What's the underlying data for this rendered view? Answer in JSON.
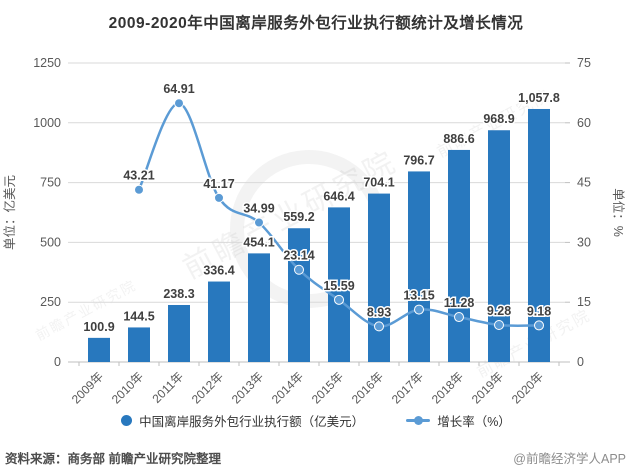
{
  "title": "2009-2020年中国离岸服务外包行业执行额统计及增长情况",
  "watermark": "前瞻产业研究院",
  "legend": {
    "bar_label": "中国离岸服务外包行业执行额（亿美元）",
    "line_label": "增长率（%）"
  },
  "footer": {
    "source": "资料来源：商务部 前瞻产业研究院整理",
    "brand": "@前瞻经济学人APP"
  },
  "colors": {
    "bar": "#2878BE",
    "line": "#5B9BD5",
    "data_label": "#404040",
    "axis_text": "#595959",
    "grid": "#D9D9D9",
    "axis_line": "#BFBFBF",
    "title": "#333333"
  },
  "chart_data": {
    "type": "bar",
    "subtype": "bar+line combo, dual axis",
    "title": "2009-2020年中国离岸服务外包行业执行额统计及增长情况",
    "categories": [
      "2009年",
      "2010年",
      "2011年",
      "2012年",
      "2013年",
      "2014年",
      "2015年",
      "2016年",
      "2017年",
      "2018年",
      "2019年",
      "2020年"
    ],
    "series": [
      {
        "name": "中国离岸服务外包行业执行额（亿美元）",
        "type": "bar",
        "axis": "left",
        "values": [
          100.9,
          144.5,
          238.3,
          336.4,
          454.1,
          559.2,
          646.4,
          704.1,
          796.7,
          886.6,
          968.9,
          1057.8
        ],
        "labels": [
          "100.9",
          "144.5",
          "238.3",
          "336.4",
          "454.1",
          "559.2",
          "646.4",
          "704.1",
          "796.7",
          "886.6",
          "968.9",
          "1,057.8"
        ]
      },
      {
        "name": "增长率（%）",
        "type": "line",
        "axis": "right",
        "values": [
          null,
          43.21,
          64.91,
          41.17,
          34.99,
          23.14,
          15.59,
          8.93,
          13.15,
          11.28,
          9.28,
          9.18
        ],
        "labels": [
          "",
          "43.21",
          "64.91",
          "41.17",
          "34.99",
          "23.14",
          "15.59",
          "8.93",
          "13.15",
          "11.28",
          "9.28",
          "9.18"
        ]
      }
    ],
    "left_axis": {
      "title": "单位：亿美元",
      "min": 0,
      "max": 1250,
      "step": 250,
      "ticks": [
        "0",
        "250",
        "500",
        "750",
        "1000",
        "1250"
      ]
    },
    "right_axis": {
      "title": "单位：%",
      "min": 0,
      "max": 75,
      "step": 15,
      "ticks": [
        "0",
        "15",
        "30",
        "45",
        "60",
        "75"
      ]
    },
    "grid": true,
    "legend_position": "bottom"
  }
}
